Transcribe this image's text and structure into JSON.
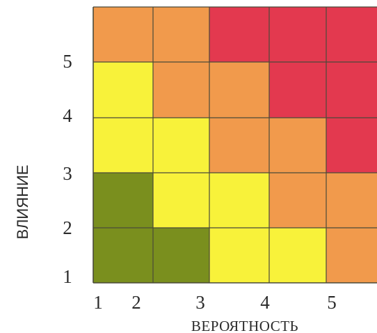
{
  "chart_data": {
    "type": "heatmap",
    "xlabel": "ВЕРОЯТНОСТЬ",
    "ylabel": "ВЛИЯНИЕ",
    "x_tick_labels": [
      "1",
      "2",
      "3",
      "4",
      "5"
    ],
    "y_tick_labels": [
      "1",
      "2",
      "3",
      "4",
      "5"
    ],
    "columns": 5,
    "rows": 5,
    "color_scale": {
      "green": "#7a8f1e",
      "yellow": "#f8f23a",
      "orange": "#f19a4c",
      "red": "#e3394f"
    },
    "cells_top_to_bottom": [
      [
        "orange",
        "orange",
        "red",
        "red",
        "red"
      ],
      [
        "yellow",
        "orange",
        "orange",
        "red",
        "red"
      ],
      [
        "yellow",
        "yellow",
        "orange",
        "orange",
        "red"
      ],
      [
        "green",
        "yellow",
        "yellow",
        "orange",
        "orange"
      ],
      [
        "green",
        "green",
        "yellow",
        "yellow",
        "orange"
      ]
    ]
  }
}
